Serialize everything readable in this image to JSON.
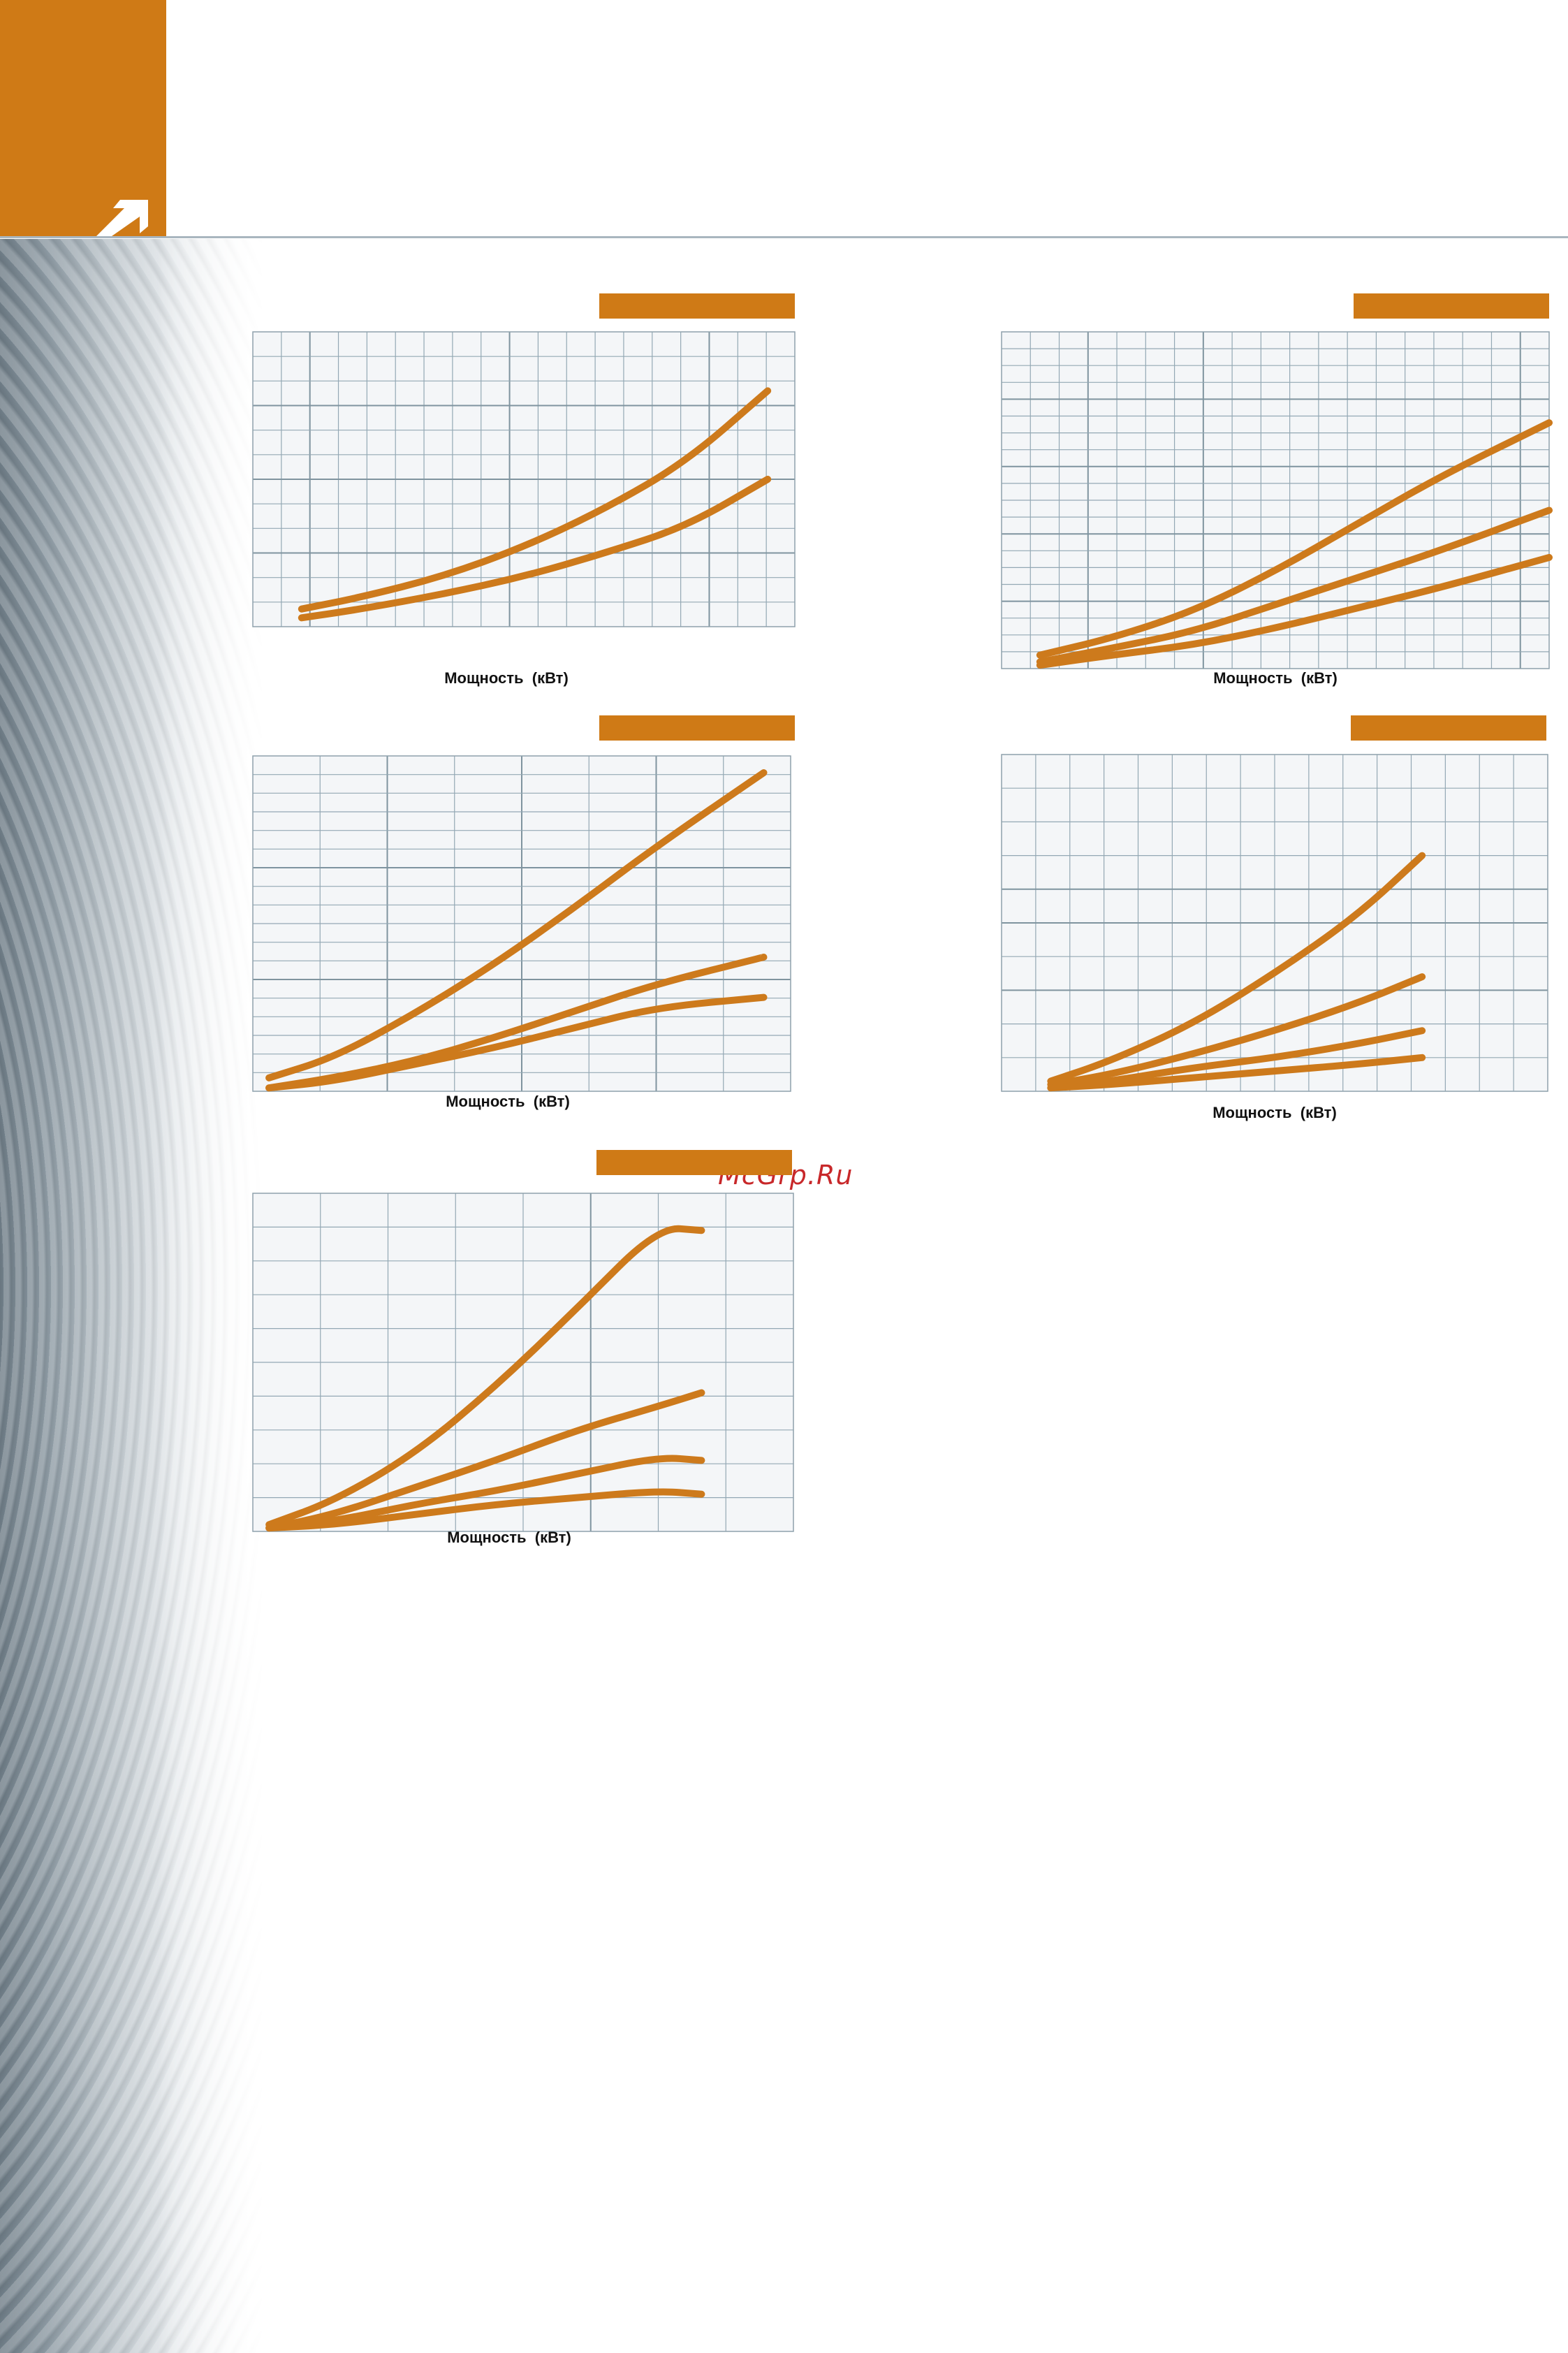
{
  "colors": {
    "accent": "#cf7a16",
    "series": "#cd7a1c",
    "grid": "#93a8b4",
    "plot_bg": "#f4f6f8",
    "watermark": "#c8282a"
  },
  "header": {
    "icon": "arrow-up-right-icon"
  },
  "watermark": "McGrp.Ru",
  "chart_data": [
    {
      "type": "line",
      "title": "",
      "xlabel": "Мощность  (кВт)",
      "ylabel": "",
      "xlim": [
        0,
        100
      ],
      "ylim": [
        0,
        100
      ],
      "grid": true,
      "series": [
        {
          "x": [
            9,
            20,
            35,
            50,
            65,
            80,
            95
          ],
          "values": [
            6,
            10,
            17,
            27,
            40,
            56,
            80
          ]
        },
        {
          "x": [
            9,
            20,
            35,
            50,
            65,
            80,
            95
          ],
          "values": [
            3,
            6,
            11,
            17,
            25,
            34,
            50
          ]
        }
      ]
    },
    {
      "type": "line",
      "title": "",
      "xlabel": "Мощность  (кВт)",
      "ylabel": "",
      "xlim": [
        0,
        100
      ],
      "ylim": [
        0,
        100
      ],
      "grid": true,
      "series": [
        {
          "x": [
            7,
            20,
            35,
            50,
            65,
            80,
            100
          ],
          "values": [
            4,
            9,
            17,
            29,
            43,
            57,
            73
          ]
        },
        {
          "x": [
            7,
            20,
            35,
            50,
            65,
            80,
            100
          ],
          "values": [
            2,
            6,
            11,
            19,
            27,
            35,
            47
          ]
        },
        {
          "x": [
            7,
            20,
            35,
            50,
            65,
            80,
            100
          ],
          "values": [
            1,
            4,
            7,
            12,
            18,
            24,
            33
          ]
        }
      ]
    },
    {
      "type": "line",
      "title": "",
      "xlabel": "Мощность  (кВт)",
      "ylabel": "",
      "xlim": [
        0,
        100
      ],
      "ylim": [
        0,
        100
      ],
      "grid": true,
      "series": [
        {
          "x": [
            3,
            15,
            30,
            45,
            60,
            75,
            95
          ],
          "values": [
            4,
            10,
            23,
            38,
            55,
            73,
            95
          ]
        },
        {
          "x": [
            3,
            15,
            30,
            45,
            60,
            75,
            95
          ],
          "values": [
            1,
            4,
            9,
            16,
            24,
            32,
            40
          ]
        },
        {
          "x": [
            3,
            15,
            30,
            45,
            60,
            75,
            95
          ],
          "values": [
            1,
            3,
            8,
            13,
            19,
            25,
            28
          ]
        }
      ]
    },
    {
      "type": "line",
      "title": "",
      "xlabel": "Мощность  (кВт)",
      "ylabel": "",
      "xlim": [
        0,
        100
      ],
      "ylim": [
        0,
        100
      ],
      "grid": true,
      "series": [
        {
          "x": [
            9,
            20,
            35,
            50,
            65,
            77
          ],
          "values": [
            3,
            9,
            20,
            35,
            52,
            70
          ]
        },
        {
          "x": [
            9,
            20,
            35,
            50,
            65,
            77
          ],
          "values": [
            2,
            5,
            11,
            18,
            26,
            34
          ]
        },
        {
          "x": [
            9,
            20,
            35,
            50,
            65,
            77
          ],
          "values": [
            1,
            3,
            7,
            10,
            14,
            18
          ]
        },
        {
          "x": [
            9,
            20,
            35,
            50,
            65,
            77
          ],
          "values": [
            1,
            2,
            4,
            6,
            8,
            10
          ]
        }
      ]
    },
    {
      "type": "line",
      "title": "",
      "xlabel": "Мощность  (кВт)",
      "ylabel": "",
      "xlim": [
        0,
        100
      ],
      "ylim": [
        0,
        100
      ],
      "grid": true,
      "series": [
        {
          "x": [
            3,
            15,
            30,
            45,
            60,
            75,
            83
          ],
          "values": [
            2,
            9,
            23,
            43,
            66,
            90,
            89
          ]
        },
        {
          "x": [
            3,
            15,
            30,
            45,
            60,
            75,
            83
          ],
          "values": [
            1,
            5,
            13,
            21,
            30,
            37,
            41
          ]
        },
        {
          "x": [
            3,
            15,
            30,
            45,
            60,
            75,
            83
          ],
          "values": [
            1,
            3,
            8,
            12,
            17,
            22,
            21
          ]
        },
        {
          "x": [
            3,
            15,
            30,
            45,
            60,
            75,
            83
          ],
          "values": [
            1,
            2,
            5,
            8,
            10,
            12,
            11
          ]
        }
      ]
    }
  ]
}
